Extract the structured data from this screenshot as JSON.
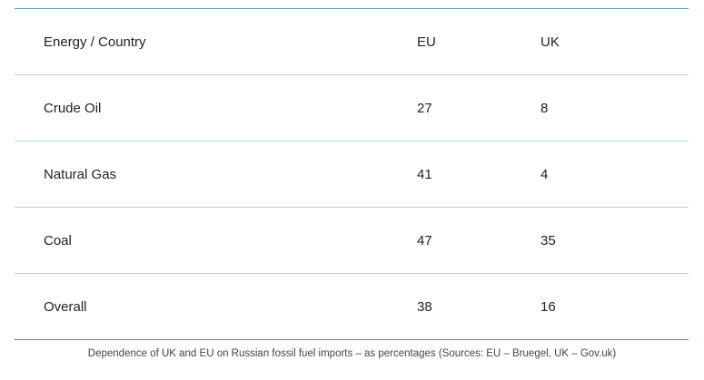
{
  "chart_data": {
    "type": "table",
    "columns": [
      "Energy / Country",
      "EU",
      "UK"
    ],
    "rows": [
      [
        "Crude Oil",
        "27",
        "8"
      ],
      [
        "Natural Gas",
        "41",
        "4"
      ],
      [
        "Coal",
        "47",
        "35"
      ],
      [
        "Overall",
        "38",
        "16"
      ]
    ],
    "caption": "Dependence of UK and EU on Russian fossil fuel imports – as percentages (Sources: EU – Bruegel, UK – Gov.uk)"
  },
  "colors": {
    "border_strong": "#3f8ea6",
    "border_light": "#a9d3df",
    "text": "#222222"
  }
}
